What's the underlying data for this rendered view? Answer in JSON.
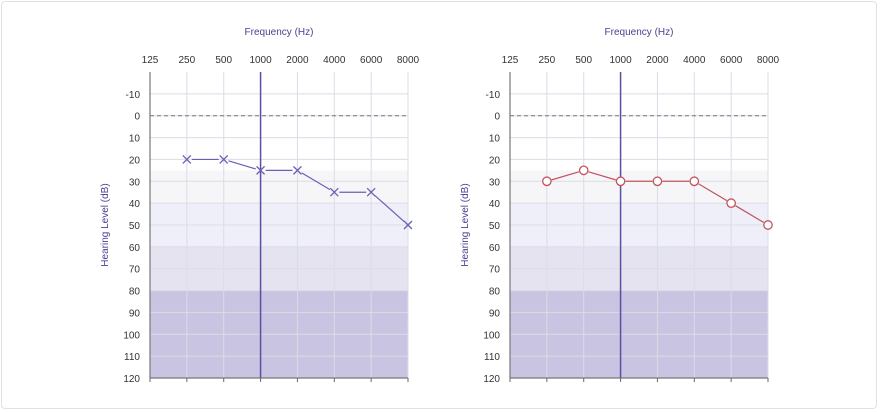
{
  "chart_data": [
    {
      "type": "line",
      "title": "Frequency (Hz)",
      "xlabel": "Frequency (Hz)",
      "ylabel": "Hearing Level (dB)",
      "categories": [
        "125",
        "250",
        "500",
        "1000",
        "2000",
        "4000",
        "6000",
        "8000"
      ],
      "yticks": [
        -10,
        0,
        10,
        20,
        30,
        40,
        50,
        60,
        70,
        80,
        90,
        100,
        110,
        120
      ],
      "ylim": [
        -20,
        120
      ],
      "y_inverted": true,
      "marker": "x",
      "color": "#6b5fb5",
      "series": [
        {
          "x": [
            "250",
            "500",
            "1000",
            "2000",
            "4000",
            "6000",
            "8000"
          ],
          "values": [
            20,
            20,
            25,
            25,
            35,
            35,
            50
          ]
        }
      ],
      "bands": [
        {
          "from": 25,
          "to": 40,
          "color": "#f6f6f9"
        },
        {
          "from": 40,
          "to": 60,
          "color": "#efeff9"
        },
        {
          "from": 60,
          "to": 80,
          "color": "#e5e3f0"
        },
        {
          "from": 80,
          "to": 120,
          "color": "#c9c4e1"
        }
      ],
      "reference_line_db": 0,
      "highlight_frequency": "1000"
    },
    {
      "type": "line",
      "title": "Frequency (Hz)",
      "xlabel": "Frequency (Hz)",
      "ylabel": "Hearing Level (dB)",
      "categories": [
        "125",
        "250",
        "500",
        "1000",
        "2000",
        "4000",
        "6000",
        "8000"
      ],
      "yticks": [
        -10,
        0,
        10,
        20,
        30,
        40,
        50,
        60,
        70,
        80,
        90,
        100,
        110,
        120
      ],
      "ylim": [
        -20,
        120
      ],
      "y_inverted": true,
      "marker": "circle",
      "color": "#c0545e",
      "series": [
        {
          "x": [
            "250",
            "500",
            "1000",
            "2000",
            "4000",
            "6000",
            "8000"
          ],
          "values": [
            30,
            25,
            30,
            30,
            30,
            40,
            50
          ]
        }
      ],
      "bands": [
        {
          "from": 25,
          "to": 40,
          "color": "#f6f6f9"
        },
        {
          "from": 40,
          "to": 60,
          "color": "#efeff9"
        },
        {
          "from": 60,
          "to": 80,
          "color": "#e5e3f0"
        },
        {
          "from": 80,
          "to": 120,
          "color": "#c9c4e1"
        }
      ],
      "reference_line_db": 0,
      "highlight_frequency": "1000"
    }
  ]
}
